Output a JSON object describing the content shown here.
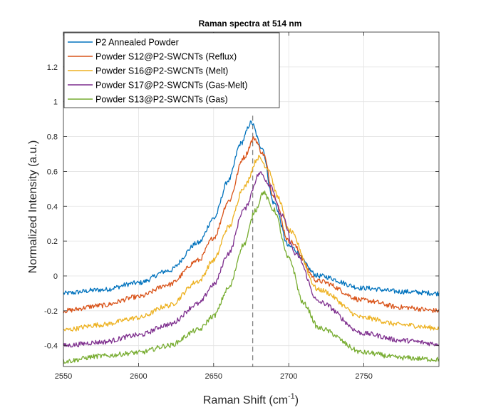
{
  "chart_data": {
    "type": "line",
    "title": "Raman spectra at 514 nm",
    "xlabel": "Raman Shift (cm",
    "xlabel_superscript": "-1",
    "xlabel_suffix": ")",
    "ylabel": "Normalized Intensity (a.u.)",
    "xlim": [
      2550,
      2800
    ],
    "ylim": [
      -0.52,
      1.4
    ],
    "xticks": [
      2550,
      2600,
      2650,
      2700,
      2750
    ],
    "yticks": [
      -0.4,
      -0.2,
      0,
      0.2,
      0.4,
      0.6,
      0.8,
      1,
      1.2
    ],
    "grid": true,
    "legend_position": "top-left",
    "reference_line": {
      "x": 2676,
      "style": "dashed",
      "color": "#808080"
    },
    "series": [
      {
        "name": "P2 Annealed Powder",
        "color": "#0072BD",
        "x": [
          2550,
          2575,
          2600,
          2620,
          2640,
          2650,
          2660,
          2668,
          2675,
          2682,
          2690,
          2700,
          2720,
          2750,
          2775,
          2800
        ],
        "y": [
          -0.1,
          -0.08,
          -0.04,
          0.03,
          0.19,
          0.33,
          0.55,
          0.76,
          0.88,
          0.74,
          0.42,
          0.17,
          0.0,
          -0.07,
          -0.09,
          -0.1
        ]
      },
      {
        "name": "Powder S12@P2-SWCNTs (Reflux)",
        "color": "#D95319",
        "x": [
          2550,
          2575,
          2600,
          2620,
          2640,
          2650,
          2660,
          2670,
          2677,
          2683,
          2690,
          2700,
          2720,
          2750,
          2775,
          2800
        ],
        "y": [
          -0.2,
          -0.17,
          -0.12,
          -0.05,
          0.09,
          0.22,
          0.43,
          0.68,
          0.79,
          0.7,
          0.46,
          0.2,
          -0.03,
          -0.14,
          -0.18,
          -0.2
        ]
      },
      {
        "name": "Powder S16@P2-SWCNTs (Melt)",
        "color": "#EDB120",
        "x": [
          2550,
          2575,
          2600,
          2620,
          2640,
          2650,
          2660,
          2670,
          2680,
          2686,
          2693,
          2700,
          2720,
          2750,
          2775,
          2800
        ],
        "y": [
          -0.31,
          -0.28,
          -0.24,
          -0.17,
          -0.03,
          0.09,
          0.28,
          0.51,
          0.68,
          0.62,
          0.45,
          0.26,
          -0.08,
          -0.24,
          -0.28,
          -0.3
        ]
      },
      {
        "name": "Powder S17@P2-SWCNTs (Gas-Melt)",
        "color": "#7E2F8E",
        "x": [
          2550,
          2575,
          2600,
          2620,
          2640,
          2650,
          2660,
          2670,
          2681,
          2688,
          2695,
          2705,
          2720,
          2750,
          2775,
          2800
        ],
        "y": [
          -0.4,
          -0.38,
          -0.34,
          -0.28,
          -0.16,
          -0.05,
          0.13,
          0.38,
          0.59,
          0.52,
          0.35,
          0.12,
          -0.15,
          -0.33,
          -0.37,
          -0.39
        ]
      },
      {
        "name": "Powder S13@P2-SWCNTs (Gas)",
        "color": "#77AC30",
        "x": [
          2550,
          2575,
          2600,
          2620,
          2640,
          2650,
          2660,
          2670,
          2678,
          2683,
          2690,
          2700,
          2710,
          2720,
          2750,
          2775,
          2800
        ],
        "y": [
          -0.49,
          -0.46,
          -0.44,
          -0.4,
          -0.31,
          -0.23,
          -0.07,
          0.18,
          0.38,
          0.48,
          0.38,
          0.1,
          -0.16,
          -0.3,
          -0.44,
          -0.47,
          -0.48
        ]
      }
    ]
  }
}
